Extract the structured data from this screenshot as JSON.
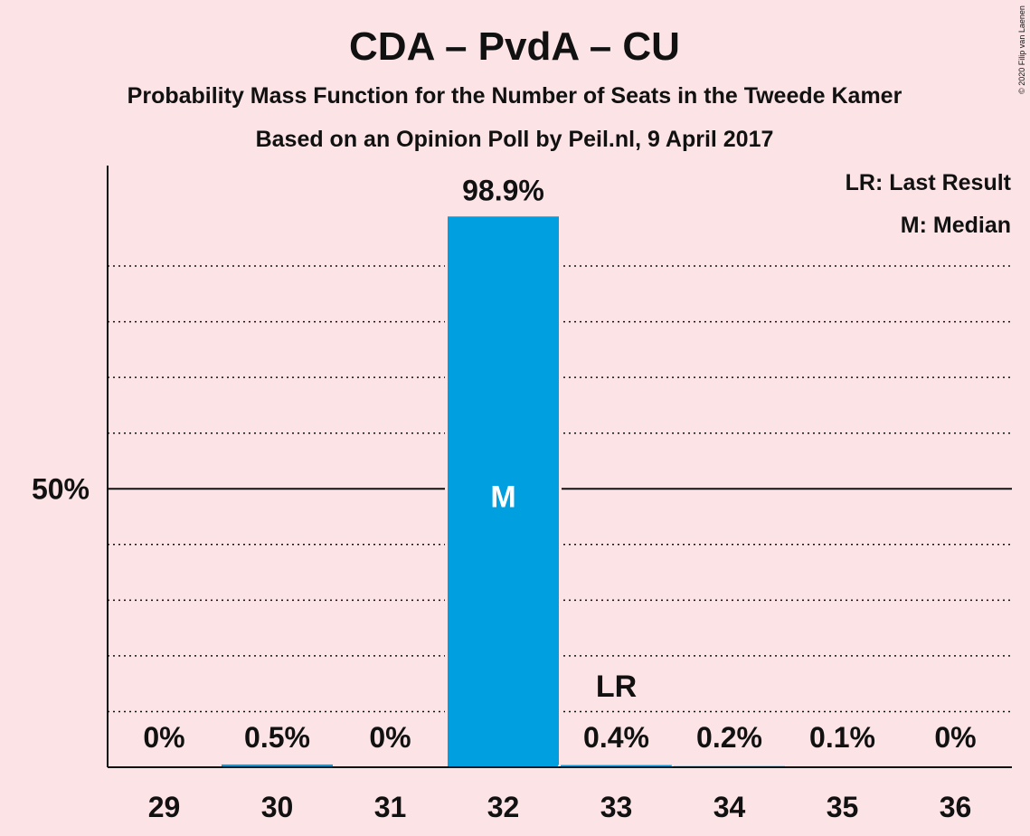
{
  "chart_data": {
    "type": "bar",
    "title": "CDA – PvdA – CU",
    "subtitle": "Probability Mass Function for the Number of Seats in the Tweede Kamer",
    "subtitle2": "Based on an Opinion Poll by Peil.nl, 9 April 2017",
    "copyright": "© 2020 Filip van Laenen",
    "legend": {
      "placement": "top-right",
      "entries": [
        "LR: Last Result",
        "M: Median"
      ]
    },
    "categories": [
      "29",
      "30",
      "31",
      "32",
      "33",
      "34",
      "35",
      "36"
    ],
    "values": [
      0,
      0.5,
      0,
      98.9,
      0.4,
      0.2,
      0.1,
      0
    ],
    "value_labels": [
      "0%",
      "0.5%",
      "0%",
      "98.9%",
      "0.4%",
      "0.2%",
      "0.1%",
      "0%"
    ],
    "median_seat": "32",
    "median_marker": "M",
    "last_result_seat": "33",
    "last_result_marker": "LR",
    "yticks": [
      {
        "value": 50,
        "label": "50%"
      }
    ],
    "gridlines": [
      10,
      20,
      30,
      40,
      60,
      70,
      80,
      90
    ],
    "ylim": [
      0,
      100
    ],
    "grid": true,
    "colors": {
      "bar": "#009fe0",
      "background": "#fce4e6",
      "text": "#111111"
    }
  }
}
